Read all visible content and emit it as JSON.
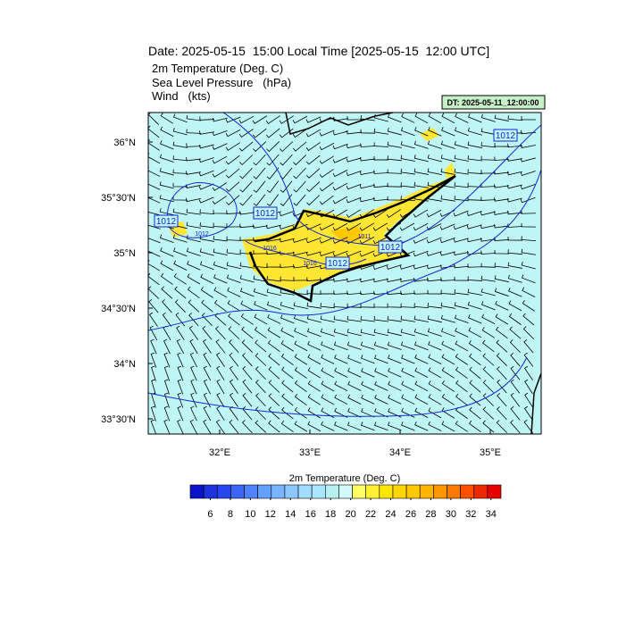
{
  "header": {
    "title": "Date: 2025-05-15  15:00 Local Time [2025-05-15  12:00 UTC]",
    "fields": [
      "2m Temperature (Deg. C)",
      "Sea Level Pressure   (hPa)",
      "Wind   (kts)"
    ],
    "valid_label": "DT: 2025-05-11_12:00:00"
  },
  "map": {
    "xlim": [
      31.208,
      35.564
    ],
    "ylim": [
      33.363,
      36.266
    ],
    "xticks": [
      {
        "value": 32,
        "label": "32°E"
      },
      {
        "value": 33,
        "label": "33°E"
      },
      {
        "value": 34,
        "label": "34°E"
      },
      {
        "value": 35,
        "label": "35°E"
      }
    ],
    "yticks": [
      {
        "value": 36,
        "label": "36°N"
      },
      {
        "value": 35.5,
        "label": "35°30'N"
      },
      {
        "value": 35,
        "label": "35°N"
      },
      {
        "value": 34.5,
        "label": "34°30'N"
      },
      {
        "value": 34,
        "label": "34°N"
      },
      {
        "value": 33.5,
        "label": "33°30'N"
      }
    ],
    "contour_labels": [
      "1012",
      "1012",
      "1012",
      "1012",
      "1012",
      "1012",
      "1016",
      "1016",
      "1011"
    ]
  },
  "colorbar": {
    "title": "2m Temperature (Deg. C)",
    "lim": [
      4,
      35
    ],
    "ticks": [
      6,
      8,
      10,
      12,
      14,
      16,
      18,
      20,
      22,
      24,
      26,
      28,
      30,
      32,
      34
    ],
    "colors": [
      "#0a14c8",
      "#1e32dc",
      "#2846f0",
      "#3c64f5",
      "#5082fa",
      "#64a0ff",
      "#78b4ff",
      "#8cc8ff",
      "#a0dcff",
      "#aae6ff",
      "#b4f0f0",
      "#d2fafa",
      "#ffff64",
      "#fff032",
      "#ffe600",
      "#ffd700",
      "#ffc800",
      "#ffb400",
      "#ff9600",
      "#ff7800",
      "#ff5000",
      "#f02800",
      "#e60000"
    ]
  }
}
